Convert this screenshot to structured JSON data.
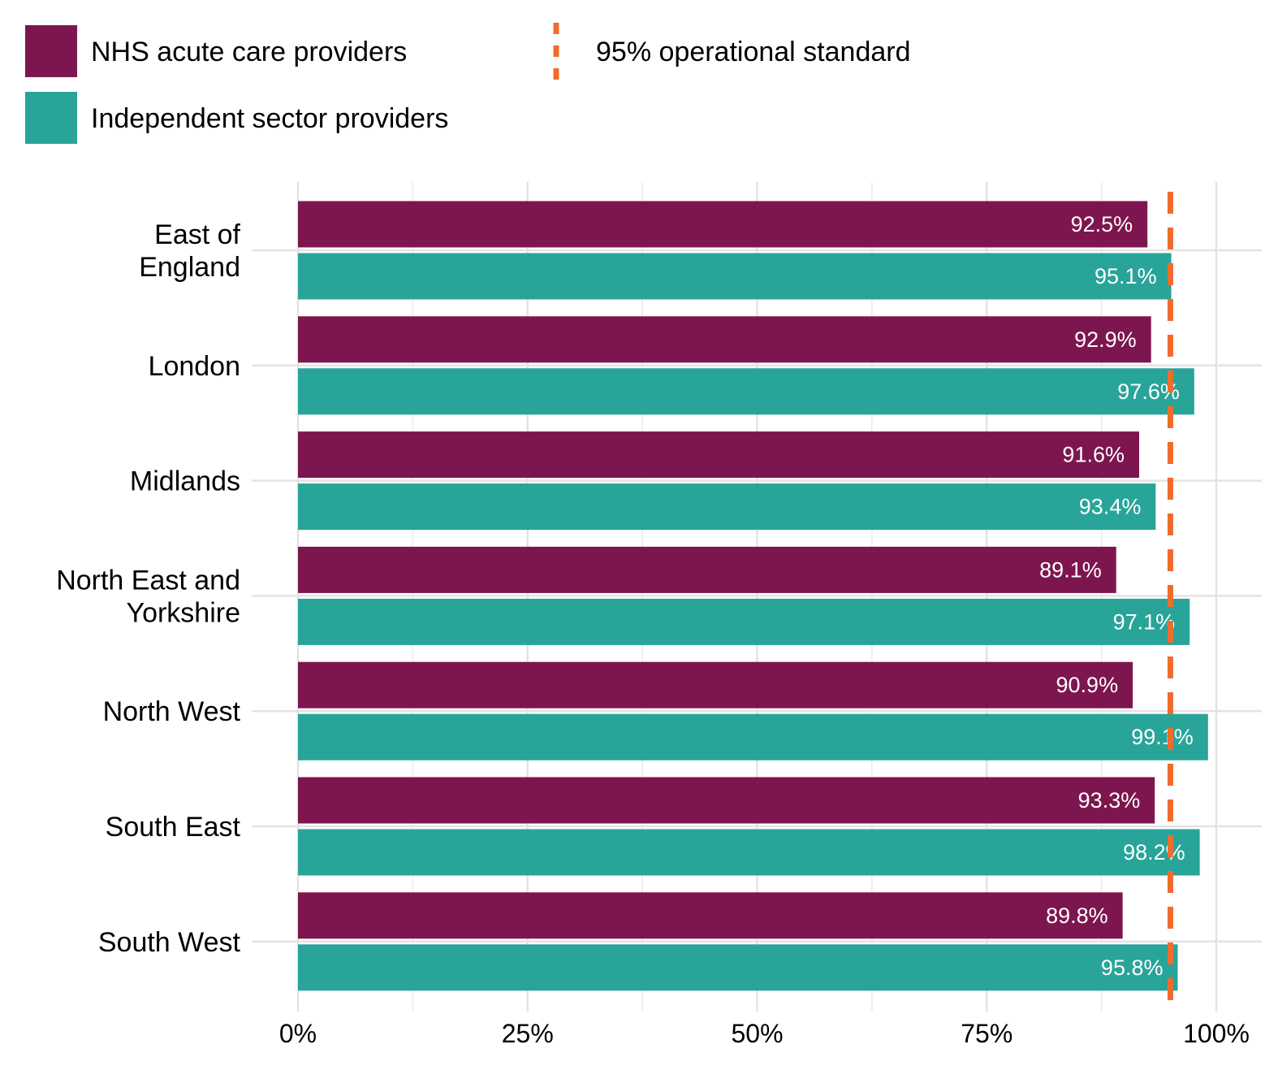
{
  "chart_data": {
    "type": "bar",
    "orientation": "horizontal",
    "categories": [
      "East of England",
      "London",
      "Midlands",
      "North East and Yorkshire",
      "North West",
      "South East",
      "South West"
    ],
    "category_lines": [
      [
        "East of",
        "England"
      ],
      [
        "London"
      ],
      [
        "Midlands"
      ],
      [
        "North East and",
        "Yorkshire"
      ],
      [
        "North West"
      ],
      [
        "South East"
      ],
      [
        "South West"
      ]
    ],
    "series": [
      {
        "name": "NHS acute care providers",
        "color": "#7d164e",
        "values": [
          92.5,
          92.9,
          91.6,
          89.1,
          90.9,
          93.3,
          89.8
        ],
        "labels": [
          "92.5%",
          "92.9%",
          "91.6%",
          "89.1%",
          "90.9%",
          "93.3%",
          "89.8%"
        ]
      },
      {
        "name": "Independent sector providers",
        "color": "#29a499",
        "values": [
          95.1,
          97.6,
          93.4,
          97.1,
          99.1,
          98.2,
          95.8
        ],
        "labels": [
          "95.1%",
          "97.6%",
          "93.4%",
          "97.1%",
          "99.1%",
          "98.2%",
          "95.8%"
        ]
      }
    ],
    "reference_line": {
      "name": "95% operational standard",
      "value": 95,
      "color": "#ef6c2d",
      "style": "dashed"
    },
    "xlim": [
      0,
      100
    ],
    "xticks": [
      0,
      25,
      50,
      75,
      100
    ],
    "xtick_labels": [
      "0%",
      "25%",
      "50%",
      "75%",
      "100%"
    ],
    "grid": true,
    "legend_position": "top"
  }
}
